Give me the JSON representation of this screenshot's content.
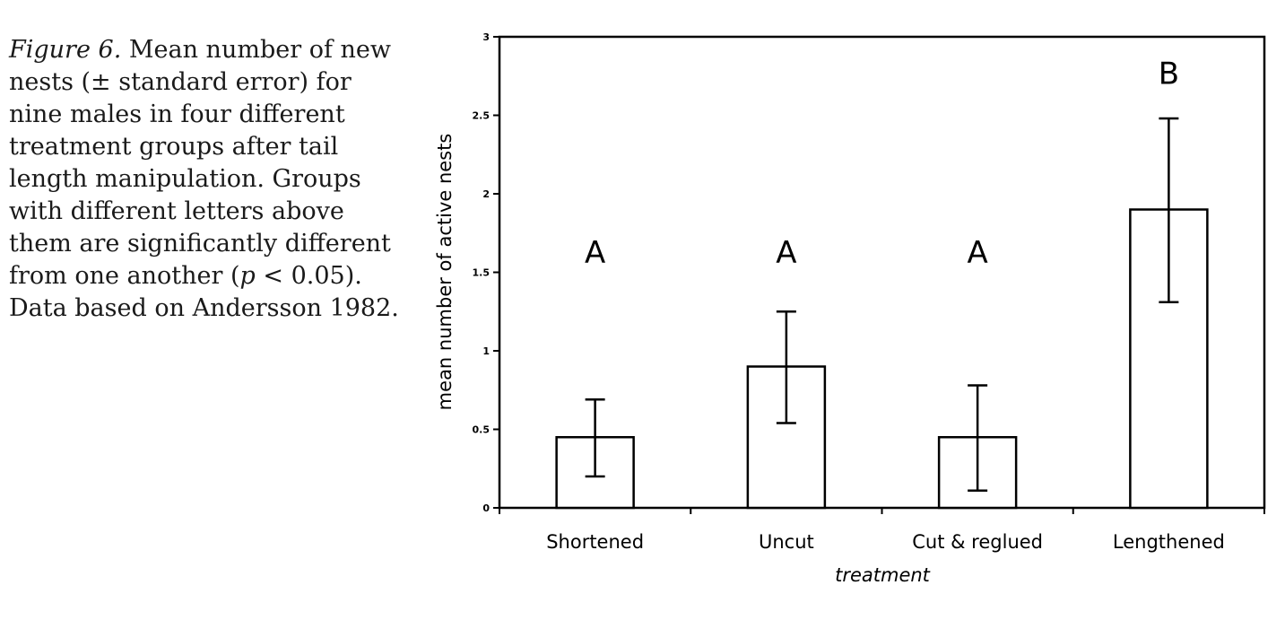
{
  "caption": {
    "lead": "Figure 6.",
    "text_before_p": " Mean number of new nests (± standard error) for nine males in four different treatment groups after tail length manipulation. Groups with different letters above them are significantly different from one another (",
    "p_var": "p",
    "text_after_p": " < 0.05). Data based on Andersson 1982."
  },
  "chart_data": {
    "type": "bar",
    "title": "",
    "xlabel": "treatment",
    "ylabel": "mean number of active nests",
    "ylim": [
      0,
      3
    ],
    "yticks": [
      0,
      0.5,
      1,
      1.5,
      2,
      2.5,
      3
    ],
    "ytick_labels": [
      "0",
      "0.5",
      "1",
      "1.5",
      "2",
      "2.5",
      "3"
    ],
    "categories": [
      "Shortened",
      "Uncut",
      "Cut & reglued",
      "Lengthened"
    ],
    "values": [
      0.45,
      0.9,
      0.45,
      1.9
    ],
    "error_low": [
      0.2,
      0.54,
      0.11,
      1.31
    ],
    "error_high": [
      0.69,
      1.25,
      0.78,
      2.48
    ],
    "group_letters": [
      "A",
      "A",
      "A",
      "B"
    ],
    "letter_y": [
      1.56,
      1.56,
      1.56,
      2.7
    ],
    "grid": false,
    "legend": "none"
  }
}
